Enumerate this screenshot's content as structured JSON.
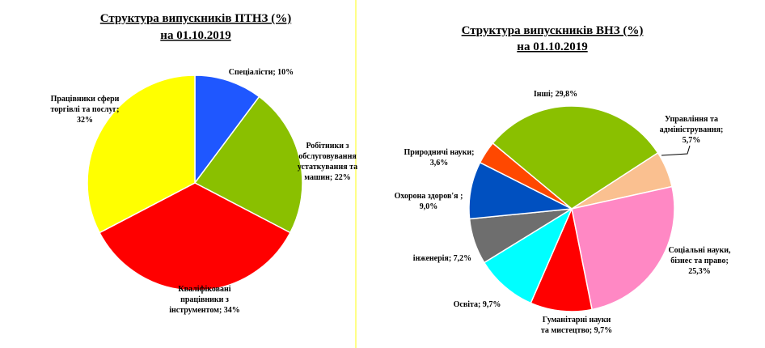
{
  "chart_data": [
    {
      "type": "pie",
      "title": "Структура випускників ПТНЗ (%)",
      "subtitle": "на 01.10.2019",
      "values": [
        10,
        22,
        34,
        32
      ],
      "value_labels": [
        "Спеціалісти; 10%",
        "Робітники з\nобслуговування\nустаткування та\nмашин; 22%",
        "Кваліфіковані\nпрацівники з\nінструментом; 34%",
        "Працівники сфери\nторгівлі та послуг;\n32%"
      ],
      "colors": [
        "#1f57ff",
        "#8ac000",
        "#ff0000",
        "#ffff00"
      ]
    },
    {
      "type": "pie",
      "title": "Структура випускників ВНЗ (%)",
      "subtitle": "на 01.10.2019",
      "values": [
        5.7,
        25.3,
        9.7,
        9.7,
        7.2,
        9.0,
        3.6,
        29.8
      ],
      "value_labels": [
        "Управління та\nадміністрування;\n5,7%",
        "Соціальні науки,\nбізнес та право;\n25,3%",
        "Гуманітарні науки\nта мистецтво; 9,7%",
        "Освіта; 9,7%",
        "інженерія; 7,2%",
        "Охорона здоров'я ;\n9,0%",
        "Природничі науки;\n3,6%",
        "Інші; 29,8%"
      ],
      "colors": [
        "#fac090",
        "#ff88c4",
        "#ff0000",
        "#00ffff",
        "#6e6e6e",
        "#0050c0",
        "#ff4800",
        "#8ac000"
      ]
    }
  ]
}
